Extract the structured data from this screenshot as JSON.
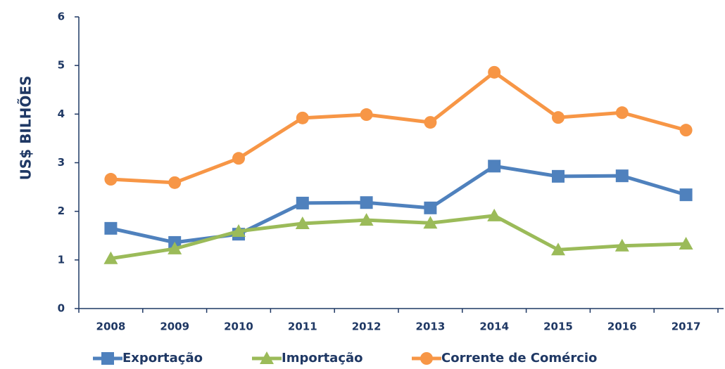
{
  "chart_data": {
    "type": "line",
    "y_label": "US$ BILHÕES",
    "categories": [
      "2008",
      "2009",
      "2010",
      "2011",
      "2012",
      "2013",
      "2014",
      "2015",
      "2016",
      "2017"
    ],
    "series": [
      {
        "name": "Exportação",
        "color": "#4f81bd",
        "marker": "square",
        "values": [
          1.65,
          1.36,
          1.53,
          2.17,
          2.18,
          2.07,
          2.93,
          2.72,
          2.73,
          2.34
        ]
      },
      {
        "name": "Importação",
        "color": "#9bbb59",
        "marker": "triangle",
        "values": [
          1.03,
          1.23,
          1.59,
          1.75,
          1.82,
          1.76,
          1.91,
          1.21,
          1.29,
          1.33
        ]
      },
      {
        "name": "Corrente de Comércio",
        "color": "#f79646",
        "marker": "circle",
        "values": [
          2.66,
          2.59,
          3.09,
          3.92,
          3.99,
          3.83,
          4.86,
          3.93,
          4.03,
          3.67
        ]
      }
    ],
    "ylim": [
      0,
      6
    ],
    "yticks": [
      0,
      1,
      2,
      3,
      4,
      5,
      6
    ],
    "legend": "bottom"
  }
}
